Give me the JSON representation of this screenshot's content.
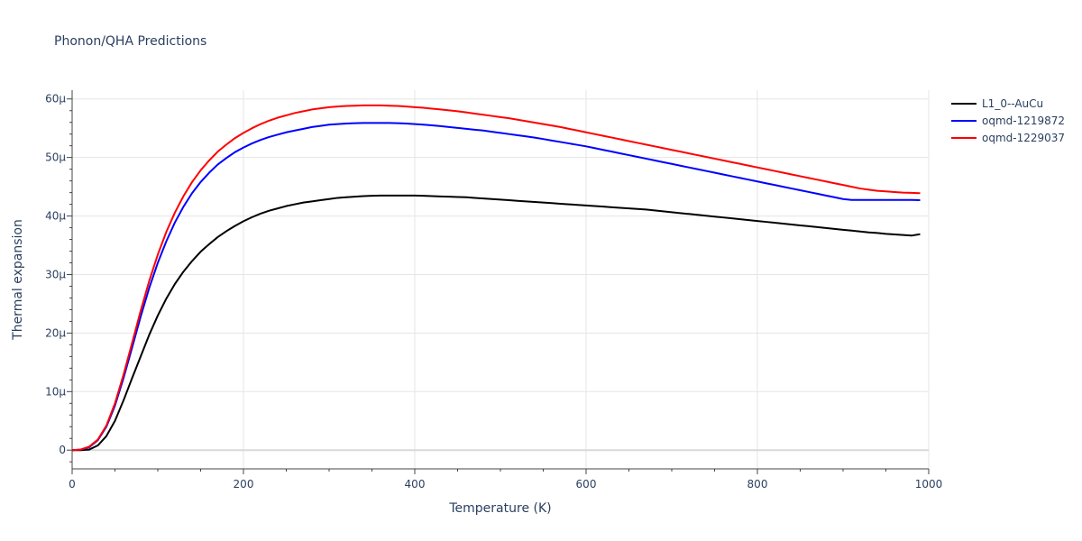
{
  "chart_data": {
    "type": "line",
    "title": "Phonon/QHA Predictions",
    "xlabel": "Temperature (K)",
    "ylabel": "Thermal expansion",
    "xlim": [
      0,
      1000
    ],
    "ylim": [
      -3.2e-06,
      6.15e-05
    ],
    "xticks": [
      0,
      200,
      400,
      600,
      800,
      1000
    ],
    "xtick_labels": [
      "0",
      "200",
      "400",
      "600",
      "800",
      "1000"
    ],
    "yticks": [
      0,
      1e-05,
      2e-05,
      3e-05,
      4e-05,
      5e-05,
      6e-05
    ],
    "ytick_labels": [
      "0",
      "10μ",
      "20μ",
      "30μ",
      "40μ",
      "50μ",
      "60μ"
    ],
    "grid": true,
    "legend_position": "top-right",
    "x": [
      0,
      10,
      20,
      30,
      40,
      50,
      60,
      70,
      80,
      90,
      100,
      110,
      120,
      130,
      140,
      150,
      160,
      170,
      180,
      190,
      200,
      210,
      220,
      230,
      240,
      250,
      260,
      270,
      280,
      290,
      300,
      310,
      320,
      330,
      340,
      350,
      360,
      370,
      380,
      390,
      400,
      410,
      420,
      430,
      440,
      450,
      460,
      470,
      480,
      490,
      500,
      510,
      520,
      530,
      540,
      550,
      560,
      570,
      580,
      590,
      600,
      610,
      620,
      630,
      640,
      650,
      660,
      670,
      680,
      690,
      700,
      710,
      720,
      730,
      740,
      750,
      760,
      770,
      780,
      790,
      800,
      810,
      820,
      830,
      840,
      850,
      860,
      870,
      880,
      890,
      900,
      910,
      920,
      930,
      940,
      950,
      960,
      970,
      980,
      990
    ],
    "series": [
      {
        "name": "L1_0--AuCu",
        "color": "#000000",
        "values": [
          0,
          0,
          1e-07,
          8e-07,
          2.4e-06,
          5e-06,
          8.5e-06,
          1.23e-05,
          1.6e-05,
          1.97e-05,
          2.3e-05,
          2.59e-05,
          2.84e-05,
          3.05e-05,
          3.23e-05,
          3.39e-05,
          3.52e-05,
          3.64e-05,
          3.74e-05,
          3.83e-05,
          3.91e-05,
          3.98e-05,
          4.04e-05,
          4.09e-05,
          4.13e-05,
          4.17e-05,
          4.2e-05,
          4.23e-05,
          4.25e-05,
          4.27e-05,
          4.29e-05,
          4.31e-05,
          4.32e-05,
          4.33e-05,
          4.34e-05,
          4.345e-05,
          4.35e-05,
          4.35e-05,
          4.35e-05,
          4.35e-05,
          4.35e-05,
          4.345e-05,
          4.34e-05,
          4.335e-05,
          4.33e-05,
          4.325e-05,
          4.32e-05,
          4.31e-05,
          4.3e-05,
          4.29e-05,
          4.28e-05,
          4.27e-05,
          4.26e-05,
          4.25e-05,
          4.24e-05,
          4.23e-05,
          4.22e-05,
          4.21e-05,
          4.2e-05,
          4.19e-05,
          4.18e-05,
          4.17e-05,
          4.16e-05,
          4.15e-05,
          4.14e-05,
          4.13e-05,
          4.12e-05,
          4.11e-05,
          4.095e-05,
          4.08e-05,
          4.065e-05,
          4.05e-05,
          4.035e-05,
          4.02e-05,
          4.005e-05,
          3.99e-05,
          3.975e-05,
          3.96e-05,
          3.945e-05,
          3.93e-05,
          3.915e-05,
          3.9e-05,
          3.885e-05,
          3.87e-05,
          3.855e-05,
          3.84e-05,
          3.825e-05,
          3.81e-05,
          3.795e-05,
          3.78e-05,
          3.765e-05,
          3.75e-05,
          3.735e-05,
          3.72e-05,
          3.71e-05,
          3.695e-05,
          3.685e-05,
          3.675e-05,
          3.665e-05,
          3.69e-05
        ]
      },
      {
        "name": "oqmd-1219872",
        "color": "#0000ff",
        "values": [
          0,
          1e-07,
          5e-07,
          1.7e-06,
          4e-06,
          7.6e-06,
          1.23e-05,
          1.75e-05,
          2.28e-05,
          2.77e-05,
          3.2e-05,
          3.57e-05,
          3.89e-05,
          4.16e-05,
          4.39e-05,
          4.58e-05,
          4.74e-05,
          4.88e-05,
          4.99e-05,
          5.09e-05,
          5.17e-05,
          5.24e-05,
          5.3e-05,
          5.35e-05,
          5.39e-05,
          5.43e-05,
          5.46e-05,
          5.49e-05,
          5.52e-05,
          5.54e-05,
          5.56e-05,
          5.57e-05,
          5.58e-05,
          5.585e-05,
          5.59e-05,
          5.59e-05,
          5.59e-05,
          5.59e-05,
          5.585e-05,
          5.58e-05,
          5.57e-05,
          5.56e-05,
          5.55e-05,
          5.535e-05,
          5.52e-05,
          5.505e-05,
          5.49e-05,
          5.475e-05,
          5.46e-05,
          5.44e-05,
          5.42e-05,
          5.4e-05,
          5.38e-05,
          5.36e-05,
          5.34e-05,
          5.315e-05,
          5.29e-05,
          5.265e-05,
          5.24e-05,
          5.215e-05,
          5.19e-05,
          5.16e-05,
          5.13e-05,
          5.1e-05,
          5.07e-05,
          5.04e-05,
          5.01e-05,
          4.98e-05,
          4.95e-05,
          4.92e-05,
          4.89e-05,
          4.86e-05,
          4.83e-05,
          4.8e-05,
          4.77e-05,
          4.74e-05,
          4.71e-05,
          4.68e-05,
          4.65e-05,
          4.62e-05,
          4.59e-05,
          4.56e-05,
          4.53e-05,
          4.5e-05,
          4.47e-05,
          4.44e-05,
          4.41e-05,
          4.38e-05,
          4.35e-05,
          4.32e-05,
          4.29e-05,
          4.275e-05,
          4.275e-05,
          4.275e-05,
          4.275e-05,
          4.275e-05,
          4.275e-05,
          4.275e-05,
          4.275e-05,
          4.27e-05
        ]
      },
      {
        "name": "oqmd-1229037",
        "color": "#ff0000",
        "values": [
          0,
          1e-07,
          6e-07,
          1.8e-06,
          4.2e-06,
          8e-06,
          1.29e-05,
          1.83e-05,
          2.38e-05,
          2.89e-05,
          3.34e-05,
          3.73e-05,
          4.06e-05,
          4.34e-05,
          4.58e-05,
          4.78e-05,
          4.95e-05,
          5.1e-05,
          5.22e-05,
          5.33e-05,
          5.42e-05,
          5.5e-05,
          5.57e-05,
          5.63e-05,
          5.68e-05,
          5.72e-05,
          5.76e-05,
          5.79e-05,
          5.82e-05,
          5.84e-05,
          5.86e-05,
          5.87e-05,
          5.88e-05,
          5.885e-05,
          5.89e-05,
          5.89e-05,
          5.89e-05,
          5.885e-05,
          5.88e-05,
          5.87e-05,
          5.86e-05,
          5.85e-05,
          5.835e-05,
          5.82e-05,
          5.805e-05,
          5.79e-05,
          5.77e-05,
          5.75e-05,
          5.73e-05,
          5.71e-05,
          5.69e-05,
          5.67e-05,
          5.645e-05,
          5.62e-05,
          5.595e-05,
          5.57e-05,
          5.545e-05,
          5.52e-05,
          5.49e-05,
          5.46e-05,
          5.43e-05,
          5.4e-05,
          5.37e-05,
          5.34e-05,
          5.31e-05,
          5.28e-05,
          5.25e-05,
          5.22e-05,
          5.19e-05,
          5.16e-05,
          5.13e-05,
          5.1e-05,
          5.07e-05,
          5.04e-05,
          5.01e-05,
          4.98e-05,
          4.95e-05,
          4.92e-05,
          4.89e-05,
          4.86e-05,
          4.83e-05,
          4.8e-05,
          4.77e-05,
          4.74e-05,
          4.71e-05,
          4.68e-05,
          4.65e-05,
          4.62e-05,
          4.59e-05,
          4.56e-05,
          4.53e-05,
          4.5e-05,
          4.47e-05,
          4.45e-05,
          4.43e-05,
          4.42e-05,
          4.41e-05,
          4.4e-05,
          4.395e-05,
          4.39e-05
        ]
      }
    ]
  }
}
